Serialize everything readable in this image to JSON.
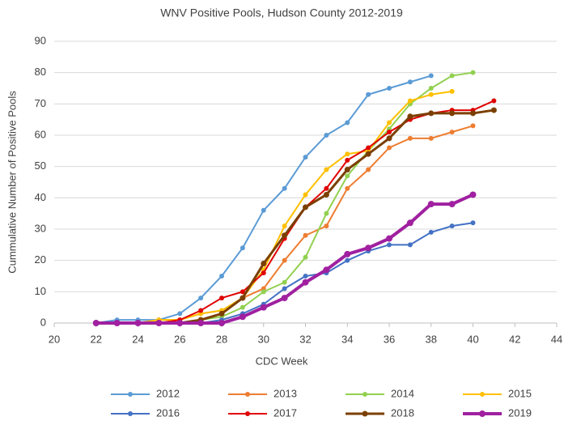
{
  "chart_data": {
    "type": "line",
    "title": "WNV Positive Pools, Hudson County 2012-2019",
    "x_label": "CDC Week",
    "y_label": "Cummulative Number of Positive Pools",
    "xlim": [
      20,
      44
    ],
    "xticks": [
      20,
      22,
      24,
      26,
      28,
      30,
      32,
      34,
      36,
      38,
      40,
      42,
      44
    ],
    "ylim": [
      0,
      90
    ],
    "yticks": [
      0,
      10,
      20,
      30,
      40,
      50,
      60,
      70,
      80,
      90
    ],
    "grid": true,
    "legend": "bottom",
    "series": [
      {
        "name": "2012",
        "color": "#5b9bd5",
        "line_width": 2,
        "x": [
          22,
          23,
          24,
          25,
          26,
          27,
          28,
          29,
          30,
          31,
          32,
          33,
          34,
          35,
          36,
          37,
          38
        ],
        "values": [
          0,
          1,
          1,
          1,
          3,
          8,
          15,
          24,
          36,
          43,
          53,
          60,
          64,
          73,
          75,
          77,
          79
        ]
      },
      {
        "name": "2013",
        "color": "#ed7d31",
        "line_width": 2,
        "x": [
          22,
          23,
          24,
          25,
          26,
          27,
          28,
          29,
          30,
          31,
          32,
          33,
          34,
          35,
          36,
          37,
          38,
          39,
          40
        ],
        "values": [
          0,
          0,
          0,
          1,
          1,
          3,
          4,
          8,
          11,
          20,
          28,
          31,
          43,
          49,
          56,
          59,
          59,
          61,
          63
        ]
      },
      {
        "name": "2014",
        "color": "#92d050",
        "line_width": 2,
        "x": [
          22,
          23,
          24,
          25,
          26,
          27,
          28,
          29,
          30,
          31,
          32,
          33,
          34,
          35,
          36,
          37,
          38,
          39,
          40
        ],
        "values": [
          0,
          0,
          0,
          0,
          0,
          1,
          2,
          5,
          10,
          13,
          21,
          35,
          47,
          55,
          62,
          70,
          75,
          79,
          80
        ]
      },
      {
        "name": "2015",
        "color": "#ffc000",
        "line_width": 2,
        "x": [
          22,
          23,
          24,
          25,
          26,
          27,
          28,
          29,
          30,
          31,
          32,
          33,
          34,
          35,
          36,
          37,
          38,
          39
        ],
        "values": [
          0,
          0,
          0,
          1,
          1,
          3,
          4,
          8,
          17,
          31,
          41,
          49,
          54,
          55,
          64,
          71,
          73,
          74
        ]
      },
      {
        "name": "2016",
        "color": "#4472c4",
        "line_width": 2,
        "x": [
          22,
          23,
          24,
          25,
          26,
          27,
          28,
          29,
          30,
          31,
          32,
          33,
          34,
          35,
          36,
          37,
          38,
          39,
          40
        ],
        "values": [
          0,
          0,
          0,
          0,
          0,
          0,
          1,
          3,
          6,
          11,
          15,
          16,
          20,
          23,
          25,
          25,
          29,
          31,
          32
        ]
      },
      {
        "name": "2017",
        "color": "#e00000",
        "line_width": 2,
        "x": [
          22,
          23,
          24,
          25,
          26,
          27,
          28,
          29,
          30,
          31,
          32,
          33,
          34,
          35,
          36,
          37,
          38,
          39,
          40,
          41
        ],
        "values": [
          0,
          0,
          0,
          0,
          1,
          4,
          8,
          10,
          16,
          27,
          37,
          43,
          52,
          56,
          61,
          65,
          67,
          68,
          68,
          71
        ]
      },
      {
        "name": "2018",
        "color": "#7b3f00",
        "line_width": 3,
        "x": [
          22,
          23,
          24,
          25,
          26,
          27,
          28,
          29,
          30,
          31,
          32,
          33,
          34,
          35,
          36,
          37,
          38,
          39,
          40,
          41
        ],
        "values": [
          0,
          0,
          0,
          0,
          0,
          1,
          3,
          8,
          19,
          28,
          37,
          41,
          49,
          54,
          59,
          66,
          67,
          67,
          67,
          68
        ]
      },
      {
        "name": "2019",
        "color": "#a020a0",
        "line_width": 4,
        "x": [
          22,
          23,
          24,
          25,
          26,
          27,
          28,
          29,
          30,
          31,
          32,
          33,
          34,
          35,
          36,
          37,
          38,
          39,
          40
        ],
        "values": [
          0,
          0,
          0,
          0,
          0,
          0,
          0,
          2,
          5,
          8,
          13,
          17,
          22,
          24,
          27,
          32,
          38,
          38,
          41
        ]
      }
    ]
  }
}
